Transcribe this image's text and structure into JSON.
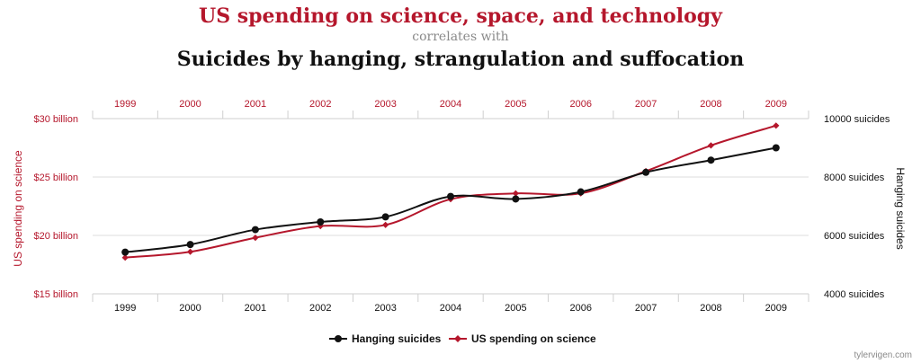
{
  "header": {
    "title_line1": "US spending on science, space, and technology",
    "title_line2": "correlates with",
    "title_line3": "Suicides by hanging, strangulation and suffocation"
  },
  "colors": {
    "science": "#b5172c",
    "hanging": "#111111",
    "subtitle_gray": "#8a8a8a",
    "grid": "#dcdcdc"
  },
  "watermark": "tylervigen.com",
  "chart_data": {
    "type": "line",
    "x": [
      "1999",
      "2000",
      "2001",
      "2002",
      "2003",
      "2004",
      "2005",
      "2006",
      "2007",
      "2008",
      "2009"
    ],
    "y_left": {
      "label": "US spending on science",
      "range": [
        15,
        30
      ],
      "ticks": [
        {
          "value": 30,
          "label": "$30 billion"
        },
        {
          "value": 25,
          "label": "$25 billion"
        },
        {
          "value": 20,
          "label": "$20 billion"
        },
        {
          "value": 15,
          "label": "$15 billion"
        }
      ]
    },
    "y_right": {
      "label": "Hanging suicides",
      "range": [
        4000,
        10000
      ],
      "ticks": [
        {
          "value": 10000,
          "label": "10000 suicides"
        },
        {
          "value": 8000,
          "label": "8000 suicides"
        },
        {
          "value": 6000,
          "label": "6000 suicides"
        },
        {
          "value": 4000,
          "label": "4000 suicides"
        }
      ]
    },
    "grid": true,
    "legend_position": "bottom-center",
    "series": [
      {
        "name": "Hanging suicides",
        "axis": "right",
        "marker": "circle",
        "values": [
          5427,
          5688,
          6198,
          6462,
          6635,
          7336,
          7248,
          7491,
          8161,
          8578,
          9000
        ]
      },
      {
        "name": "US spending on science",
        "axis": "left",
        "marker": "diamond",
        "values": [
          18.1,
          18.6,
          19.8,
          20.8,
          20.9,
          23.1,
          23.6,
          23.6,
          25.5,
          27.7,
          29.4
        ]
      }
    ]
  }
}
